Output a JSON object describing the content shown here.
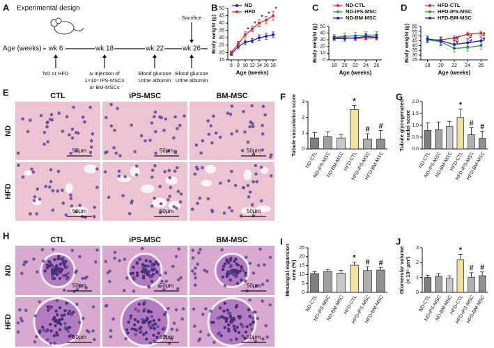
{
  "design": {
    "label": "A",
    "title": "Experimental design",
    "axis_label": "Age (weeks)",
    "timepoints": [
      "wk 6",
      "wk 18",
      "wk 22",
      "wk 26"
    ],
    "events": [
      [
        "ND or HFD"
      ],
      [
        "iv injection of",
        "1×10⁶ iPS-MSCs",
        "or BM-MSCs"
      ],
      [
        "Blood glucose",
        "Urine albumin"
      ],
      [
        "Blood glucose",
        "Urine albumin"
      ]
    ],
    "top_event": "Sacrifice"
  },
  "histology": [
    {
      "label": "E",
      "columns": [
        "CTL",
        "iPS-MSC",
        "BM-MSC"
      ],
      "rows": [
        "ND",
        "HFD"
      ],
      "scale_bar": "50μm"
    },
    {
      "label": "H",
      "columns": [
        "CTL",
        "iPS-MSC",
        "BM-MSC"
      ],
      "rows": [
        "ND",
        "HFD"
      ],
      "scale_bar": "50μm"
    }
  ],
  "chart_data": [
    {
      "type": "line",
      "label": "B",
      "x_label": "Age (weeks)",
      "y_label": "Body weight (g)",
      "x": [
        6,
        8,
        10,
        12,
        14,
        16,
        18
      ],
      "xlim": [
        5,
        19
      ],
      "xticks": [
        6,
        8,
        10,
        12,
        14,
        16,
        18
      ],
      "ylim": [
        15,
        50
      ],
      "yticks": [
        15,
        20,
        25,
        30,
        35,
        40,
        45,
        50
      ],
      "legend": "upper left",
      "series": [
        {
          "name": "ND",
          "color": "#1f1fd0",
          "values": [
            19,
            24,
            27,
            28,
            30,
            31,
            32
          ],
          "errors": [
            1,
            1.5,
            1.5,
            1.5,
            2,
            2,
            2
          ]
        },
        {
          "name": "HFD",
          "color": "#e8262a",
          "values": [
            20,
            26,
            32,
            36,
            40,
            42,
            45
          ],
          "errors": [
            1,
            1.5,
            2,
            2,
            2.5,
            2.5,
            3
          ],
          "significance": [
            null,
            null,
            "*",
            "*",
            "*",
            "*",
            "*"
          ]
        }
      ]
    },
    {
      "type": "line",
      "label": "C",
      "x_label": "Age (weeks)",
      "y_label": "Body weight (g)",
      "x": [
        18,
        20,
        22,
        24,
        26
      ],
      "xlim": [
        17,
        27
      ],
      "xticks": [
        18,
        20,
        22,
        24,
        26
      ],
      "ylim": [
        0,
        50
      ],
      "yticks": [
        0,
        10,
        20,
        30,
        40,
        50
      ],
      "legend": "upper left",
      "series": [
        {
          "name": "ND-CTL",
          "color": "#e8262a",
          "values": [
            33,
            33,
            32,
            33,
            33
          ],
          "errors": [
            3,
            3,
            3,
            3,
            3
          ]
        },
        {
          "name": "ND-iPS-MSC",
          "color": "#2ca02c",
          "values": [
            34,
            35,
            36,
            37,
            37
          ],
          "errors": [
            4,
            5,
            5,
            5,
            5
          ]
        },
        {
          "name": "ND-BM-MSC",
          "color": "#1f1fd0",
          "values": [
            32,
            32,
            33,
            35,
            34
          ],
          "errors": [
            3,
            4,
            4,
            4,
            4
          ]
        }
      ]
    },
    {
      "type": "line",
      "label": "D",
      "x_label": "Age (weeks)",
      "y_label": "Body weight (g)",
      "x": [
        18,
        20,
        22,
        24,
        26
      ],
      "xlim": [
        17,
        27
      ],
      "xticks": [
        18,
        20,
        22,
        24,
        26
      ],
      "ylim": [
        25,
        60
      ],
      "yticks": [
        25,
        30,
        35,
        40,
        45,
        50,
        55,
        60
      ],
      "legend": "upper left",
      "series": [
        {
          "name": "HFD-CTL",
          "color": "#e8262a",
          "values": [
            46,
            46,
            48,
            52,
            53
          ],
          "errors": [
            3,
            3,
            2,
            2,
            2
          ]
        },
        {
          "name": "HFD-iPS-MSC",
          "color": "#2ca02c",
          "values": [
            46,
            44,
            37,
            38,
            40
          ],
          "errors": [
            3,
            4,
            4,
            4,
            4
          ],
          "significance": [
            null,
            null,
            "#",
            "#",
            "#"
          ]
        },
        {
          "name": "HFD-BM-MSC",
          "color": "#1f1fd0",
          "values": [
            47,
            45,
            41,
            43,
            45
          ],
          "errors": [
            3,
            4,
            4,
            4,
            4
          ],
          "significance": [
            null,
            null,
            "#",
            "#",
            "#"
          ]
        }
      ]
    },
    {
      "type": "bar",
      "label": "F",
      "y_label": [
        "Tubule vacuolation score"
      ],
      "categories": [
        "ND-CTL",
        "ND-iPS-MSC",
        "ND-BM-MSC",
        "HFD-CTL",
        "HFD-iPS-MSC",
        "HFD-BM-MSC"
      ],
      "values": [
        0.7,
        0.78,
        0.7,
        2.5,
        0.62,
        0.62
      ],
      "errors": [
        0.35,
        0.3,
        0.22,
        0.25,
        0.35,
        0.55
      ],
      "significance": [
        null,
        null,
        null,
        "*",
        "#",
        "#"
      ],
      "colors": [
        "#7f7f7f",
        "#a0a0a0",
        "#c8c8c8",
        "#f0e0a0",
        "#b0b0b0",
        "#909090"
      ],
      "ylim": [
        0,
        3
      ],
      "yticks": [
        0,
        1,
        2,
        3
      ]
    },
    {
      "type": "bar",
      "label": "G",
      "y_label": [
        "Tubule glycogenated",
        "nuclei score"
      ],
      "categories": [
        "ND-CTL",
        "ND-iPS-MSC",
        "ND-BM-MSC",
        "HFD-CTL",
        "HFD-iPS-MSC",
        "HFD-BM-MSC"
      ],
      "values": [
        0.78,
        0.82,
        0.95,
        1.33,
        0.6,
        0.45
      ],
      "errors": [
        0.32,
        0.32,
        0.22,
        0.35,
        0.3,
        0.3
      ],
      "significance": [
        null,
        null,
        null,
        "*",
        "#",
        "#"
      ],
      "colors": [
        "#7f7f7f",
        "#a0a0a0",
        "#c8c8c8",
        "#f0e0a0",
        "#b0b0b0",
        "#909090"
      ],
      "ylim": [
        0,
        2
      ],
      "yticks": [
        {
          "value": 0,
          "label": "0.0"
        },
        {
          "value": 0.5,
          "label": "0.5"
        },
        {
          "value": 1,
          "label": "1.0"
        },
        {
          "value": 1.5,
          "label": "1.5"
        },
        {
          "value": 2,
          "label": "2.0"
        }
      ]
    },
    {
      "type": "bar",
      "label": "I",
      "y_label": [
        "Mesangial expansion",
        "area (%)"
      ],
      "categories": [
        "ND-CTL",
        "ND-iPS-MSC",
        "ND-BM-MSC",
        "HFD-CTL",
        "HFD-iPS-MSC",
        "HFD-BM-MSC"
      ],
      "values": [
        10.5,
        11.8,
        10.8,
        15.2,
        12.2,
        12.5
      ],
      "errors": [
        1.2,
        1,
        1.5,
        1.8,
        2.2,
        1.5
      ],
      "significance": [
        null,
        null,
        null,
        "*",
        "#",
        "#"
      ],
      "colors": [
        "#7f7f7f",
        "#a0a0a0",
        "#c8c8c8",
        "#f0e0a0",
        "#b0b0b0",
        "#909090"
      ],
      "ylim": [
        0,
        25
      ],
      "yticks": [
        0,
        5,
        10,
        15,
        20,
        25
      ]
    },
    {
      "type": "bar",
      "label": "J",
      "y_label": [
        "Glomerular volume",
        "(× 10⁵ μm³)"
      ],
      "categories": [
        "ND-CTL",
        "ND-iPS-MSC",
        "ND-BM-MSC",
        "HFD-CTL",
        "HFD-iPS-MSC",
        "HFD-BM-MSC"
      ],
      "values": [
        1.0,
        1.08,
        0.95,
        2.2,
        1.02,
        1.12
      ],
      "errors": [
        0.15,
        0.18,
        0.15,
        0.35,
        0.3,
        0.25
      ],
      "significance": [
        null,
        null,
        null,
        "*",
        "#",
        "#"
      ],
      "colors": [
        "#7f7f7f",
        "#a0a0a0",
        "#c8c8c8",
        "#f0e0a0",
        "#b0b0b0",
        "#909090"
      ],
      "ylim": [
        0,
        3
      ],
      "yticks": [
        0,
        1,
        2,
        3
      ]
    }
  ]
}
